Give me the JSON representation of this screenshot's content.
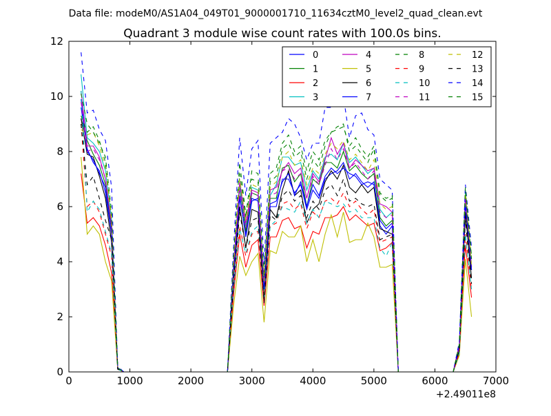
{
  "suptitle": "Data file: modeM0/AS1A04_049T01_9000001710_11634cztM0_level2_quad_clean.evt",
  "chart_data": {
    "type": "line",
    "title": "Quadrant 3 module wise count rates with 100.0s bins.",
    "xlabel": "",
    "ylabel": "",
    "x_offset_label": "+2.49011e8",
    "xlim": [
      0,
      7000
    ],
    "ylim": [
      0,
      12
    ],
    "xticks": [
      0,
      1000,
      2000,
      3000,
      4000,
      5000,
      6000,
      7000
    ],
    "xtick_labels": [
      "0",
      "1000",
      "2000",
      "3000",
      "4000",
      "5000",
      "6000",
      "7000"
    ],
    "yticks": [
      0,
      2,
      4,
      6,
      8,
      10,
      12
    ],
    "ytick_labels": [
      "0",
      "2",
      "4",
      "6",
      "8",
      "10",
      "12"
    ],
    "legend_location": "top-right",
    "legend_columns": 4,
    "x": [
      200,
      300,
      400,
      500,
      600,
      700,
      800,
      900,
      1000,
      1100,
      1200,
      1300,
      1400,
      1500,
      1600,
      1700,
      1800,
      1900,
      2000,
      2100,
      2200,
      2300,
      2400,
      2500,
      2600,
      2700,
      2800,
      2900,
      3000,
      3100,
      3200,
      3300,
      3400,
      3500,
      3600,
      3700,
      3800,
      3900,
      4000,
      4100,
      4200,
      4300,
      4400,
      4500,
      4600,
      4700,
      4800,
      4900,
      5000,
      5100,
      5200,
      5300,
      5400,
      5500,
      5600,
      5700,
      5800,
      5900,
      6000,
      6100,
      6200,
      6300,
      6400,
      6500,
      6600
    ],
    "series": [
      {
        "name": "0",
        "color": "#0000ff",
        "dash": "solid",
        "values": [
          9.6,
          8.1,
          7.6,
          7.3,
          6.5,
          5.0,
          0.15,
          0,
          0,
          0,
          0,
          0,
          0,
          0,
          0,
          0,
          0,
          0,
          0,
          0,
          0,
          0,
          0,
          0,
          0,
          3.6,
          6.3,
          5.0,
          6.3,
          6.2,
          3.1,
          6.0,
          6.0,
          7.0,
          7.0,
          6.5,
          6.8,
          5.9,
          6.6,
          6.3,
          7.0,
          7.2,
          7.3,
          7.6,
          7.0,
          7.2,
          6.9,
          6.7,
          6.9,
          5.3,
          5.0,
          5.3,
          0,
          0,
          0,
          0,
          0,
          0,
          0,
          0,
          0,
          0,
          0.9,
          6.1,
          3.7
        ]
      },
      {
        "name": "1",
        "color": "#008000",
        "dash": "solid",
        "values": [
          9.2,
          8.4,
          7.9,
          7.5,
          6.8,
          5.2,
          0.15,
          0,
          0,
          0,
          0,
          0,
          0,
          0,
          0,
          0,
          0,
          0,
          0,
          0,
          0,
          0,
          0,
          0,
          0,
          3.7,
          6.7,
          5.1,
          6.5,
          6.4,
          3.2,
          6.3,
          6.3,
          7.4,
          7.5,
          6.9,
          7.2,
          6.0,
          7.0,
          6.8,
          7.6,
          7.6,
          7.4,
          8.0,
          7.3,
          7.5,
          7.2,
          7.0,
          7.2,
          5.6,
          5.3,
          5.5,
          0,
          0,
          0,
          0,
          0,
          0,
          0,
          0,
          0,
          0,
          0.9,
          6.3,
          3.8
        ]
      },
      {
        "name": "2",
        "color": "#ff0000",
        "dash": "solid",
        "values": [
          7.2,
          5.4,
          5.6,
          5.3,
          4.6,
          3.6,
          0.1,
          0,
          0,
          0,
          0,
          0,
          0,
          0,
          0,
          0,
          0,
          0,
          0,
          0,
          0,
          0,
          0,
          0,
          0,
          2.8,
          5.0,
          3.8,
          4.6,
          4.8,
          2.4,
          4.9,
          4.9,
          5.5,
          5.6,
          5.2,
          5.3,
          4.5,
          5.1,
          5.0,
          5.6,
          5.6,
          5.7,
          6.0,
          5.5,
          5.7,
          5.5,
          5.3,
          5.4,
          4.4,
          4.5,
          4.7,
          0,
          0,
          0,
          0,
          0,
          0,
          0,
          0,
          0,
          0,
          0.7,
          4.6,
          2.7
        ]
      },
      {
        "name": "3",
        "color": "#00bfbf",
        "dash": "solid",
        "values": [
          10.8,
          8.5,
          8.3,
          8.0,
          7.3,
          5.5,
          0.15,
          0,
          0,
          0,
          0,
          0,
          0,
          0,
          0,
          0,
          0,
          0,
          0,
          0,
          0,
          0,
          0,
          0,
          0,
          3.9,
          6.8,
          5.3,
          6.7,
          6.6,
          3.3,
          6.4,
          6.8,
          7.8,
          7.8,
          7.5,
          7.6,
          6.6,
          7.3,
          7.0,
          7.8,
          7.9,
          7.7,
          8.3,
          7.6,
          7.8,
          7.5,
          7.2,
          7.4,
          5.9,
          5.6,
          5.8,
          0,
          0,
          0,
          0,
          0,
          0,
          0,
          0,
          0,
          0,
          1.0,
          6.5,
          3.9
        ]
      },
      {
        "name": "4",
        "color": "#bf00bf",
        "dash": "solid",
        "values": [
          10.2,
          8.2,
          8.2,
          7.8,
          7.0,
          5.3,
          0.15,
          0,
          0,
          0,
          0,
          0,
          0,
          0,
          0,
          0,
          0,
          0,
          0,
          0,
          0,
          0,
          0,
          0,
          0,
          3.8,
          6.9,
          5.4,
          6.6,
          6.5,
          3.3,
          6.6,
          6.7,
          7.3,
          7.6,
          7.2,
          7.4,
          6.3,
          7.2,
          6.9,
          7.7,
          8.5,
          7.9,
          8.3,
          7.4,
          7.7,
          7.5,
          7.3,
          7.4,
          6.1,
          6.0,
          5.8,
          0,
          0,
          0,
          0,
          0,
          0,
          0,
          0,
          0,
          0,
          1.0,
          6.4,
          3.8
        ]
      },
      {
        "name": "5",
        "color": "#bfbf00",
        "dash": "solid",
        "values": [
          7.8,
          5.0,
          5.3,
          5.0,
          4.0,
          3.3,
          0.1,
          0,
          0,
          0,
          0,
          0,
          0,
          0,
          0,
          0,
          0,
          0,
          0,
          0,
          0,
          0,
          0,
          0,
          0,
          2.4,
          4.2,
          3.5,
          4.0,
          4.3,
          1.8,
          4.4,
          4.3,
          5.1,
          4.9,
          4.9,
          5.3,
          4.0,
          4.8,
          4.0,
          5.0,
          5.7,
          4.9,
          5.8,
          4.7,
          4.8,
          4.8,
          5.4,
          4.9,
          3.8,
          3.8,
          3.9,
          0,
          0,
          0,
          0,
          0,
          0,
          0,
          0,
          0,
          0,
          0.6,
          4.1,
          2.0
        ]
      },
      {
        "name": "6",
        "color": "#000000",
        "dash": "solid",
        "values": [
          9.2,
          7.9,
          7.8,
          7.1,
          6.3,
          4.7,
          0.1,
          0,
          0,
          0,
          0,
          0,
          0,
          0,
          0,
          0,
          0,
          0,
          0,
          0,
          0,
          0,
          0,
          0,
          0,
          3.4,
          6.0,
          4.5,
          5.9,
          5.8,
          2.6,
          5.9,
          5.6,
          6.6,
          7.3,
          6.4,
          6.6,
          5.4,
          5.9,
          6.1,
          6.9,
          7.3,
          7.0,
          7.5,
          6.7,
          6.5,
          6.8,
          6.5,
          6.7,
          5.2,
          5.1,
          5.0,
          0,
          0,
          0,
          0,
          0,
          0,
          0,
          0,
          0,
          0,
          0.8,
          5.8,
          3.4
        ]
      },
      {
        "name": "7",
        "color": "#0000ff",
        "dash": "solid",
        "values": [
          9.9,
          8.0,
          7.7,
          7.2,
          6.7,
          5.0,
          0.15,
          0,
          0,
          0,
          0,
          0,
          0,
          0,
          0,
          0,
          0,
          0,
          0,
          0,
          0,
          0,
          0,
          0,
          0,
          3.6,
          6.4,
          4.9,
          6.2,
          6.3,
          3.0,
          6.1,
          6.2,
          6.9,
          7.2,
          6.4,
          6.9,
          6.0,
          6.8,
          6.4,
          7.1,
          7.4,
          7.2,
          7.4,
          7.2,
          7.1,
          6.8,
          6.9,
          6.8,
          5.5,
          5.2,
          5.4,
          0,
          0,
          0,
          0,
          0,
          0,
          0,
          0,
          0,
          0,
          0.9,
          6.2,
          3.7
        ]
      },
      {
        "name": "8",
        "color": "#008000",
        "dash": "dashed",
        "values": [
          9.3,
          8.7,
          8.9,
          8.4,
          7.6,
          5.6,
          0.15,
          0,
          0,
          0,
          0,
          0,
          0,
          0,
          0,
          0,
          0,
          0,
          0,
          0,
          0,
          0,
          0,
          0,
          0,
          4.0,
          7.2,
          5.6,
          7.0,
          6.9,
          3.4,
          6.9,
          7.1,
          8.1,
          8.3,
          7.8,
          8.0,
          7.0,
          7.7,
          7.4,
          8.2,
          8.7,
          8.9,
          9.0,
          8.0,
          8.2,
          7.9,
          7.6,
          8.1,
          6.4,
          6.2,
          6.3,
          0,
          0,
          0,
          0,
          0,
          0,
          0,
          0,
          0,
          0,
          1.0,
          6.6,
          4.1
        ]
      },
      {
        "name": "9",
        "color": "#ff0000",
        "dash": "dashed",
        "values": [
          9.0,
          6.0,
          6.2,
          5.8,
          5.0,
          4.2,
          0.1,
          0,
          0,
          0,
          0,
          0,
          0,
          0,
          0,
          0,
          0,
          0,
          0,
          0,
          0,
          0,
          0,
          0,
          0,
          3.0,
          5.3,
          4.2,
          5.0,
          5.1,
          2.6,
          5.3,
          5.4,
          6.1,
          6.2,
          5.9,
          6.1,
          5.2,
          5.8,
          5.6,
          6.2,
          6.3,
          6.1,
          6.5,
          6.0,
          6.2,
          5.9,
          5.7,
          5.9,
          4.7,
          4.8,
          4.9,
          0,
          0,
          0,
          0,
          0,
          0,
          0,
          0,
          0,
          0,
          0.7,
          5.0,
          3.0
        ]
      },
      {
        "name": "10",
        "color": "#00bfbf",
        "dash": "dashed",
        "values": [
          10.2,
          5.8,
          6.2,
          5.9,
          5.1,
          4.3,
          0.1,
          0,
          0,
          0,
          0,
          0,
          0,
          0,
          0,
          0,
          0,
          0,
          0,
          0,
          0,
          0,
          0,
          0,
          0,
          3.0,
          5.2,
          4.3,
          5.1,
          5.3,
          2.6,
          5.3,
          5.5,
          6.0,
          5.9,
          5.8,
          6.2,
          5.4,
          5.9,
          5.6,
          6.2,
          6.1,
          6.0,
          6.1,
          5.8,
          5.9,
          5.6,
          5.6,
          5.6,
          4.5,
          4.2,
          4.7,
          0,
          0,
          0,
          0,
          0,
          0,
          0,
          0,
          0,
          0,
          0.7,
          5.0,
          3.0
        ]
      },
      {
        "name": "11",
        "color": "#bf00bf",
        "dash": "dashed",
        "values": [
          9.8,
          8.0,
          8.1,
          7.7,
          7.0,
          5.3,
          0.15,
          0,
          0,
          0,
          0,
          0,
          0,
          0,
          0,
          0,
          0,
          0,
          0,
          0,
          0,
          0,
          0,
          0,
          0,
          3.8,
          6.6,
          5.2,
          6.5,
          6.4,
          3.2,
          6.4,
          6.5,
          7.3,
          7.4,
          7.0,
          7.2,
          6.3,
          7.1,
          6.8,
          7.5,
          8.1,
          7.7,
          8.1,
          7.4,
          7.6,
          7.3,
          7.0,
          7.3,
          5.8,
          5.6,
          5.7,
          0,
          0,
          0,
          0,
          0,
          0,
          0,
          0,
          0,
          0,
          0.9,
          6.4,
          3.8
        ]
      },
      {
        "name": "12",
        "color": "#bfbf00",
        "dash": "dashed",
        "values": [
          8.8,
          8.6,
          8.7,
          8.2,
          7.4,
          5.5,
          0.15,
          0,
          0,
          0,
          0,
          0,
          0,
          0,
          0,
          0,
          0,
          0,
          0,
          0,
          0,
          0,
          0,
          0,
          0,
          3.9,
          7.0,
          5.5,
          6.8,
          6.7,
          3.3,
          6.7,
          6.9,
          7.8,
          8.0,
          7.5,
          7.7,
          6.8,
          7.4,
          7.2,
          7.9,
          8.3,
          8.1,
          8.4,
          7.7,
          7.9,
          7.6,
          7.3,
          7.7,
          6.1,
          5.9,
          6.0,
          0,
          0,
          0,
          0,
          0,
          0,
          0,
          0,
          0,
          0,
          1.0,
          6.5,
          3.9
        ]
      },
      {
        "name": "13",
        "color": "#000000",
        "dash": "dashed",
        "values": [
          9.0,
          6.8,
          7.1,
          6.3,
          5.5,
          4.8,
          0.1,
          0,
          0,
          0,
          0,
          0,
          0,
          0,
          0,
          0,
          0,
          0,
          0,
          0,
          0,
          0,
          0,
          0,
          0,
          3.2,
          5.8,
          4.5,
          5.5,
          5.6,
          2.5,
          5.7,
          5.5,
          6.4,
          6.6,
          6.2,
          6.4,
          5.6,
          6.2,
          5.9,
          6.6,
          6.8,
          6.4,
          7.0,
          6.2,
          6.3,
          6.1,
          6.0,
          6.1,
          4.8,
          4.9,
          5.0,
          0,
          0,
          0,
          0,
          0,
          0,
          0,
          0,
          0,
          0,
          0.8,
          5.5,
          3.2
        ]
      },
      {
        "name": "14",
        "color": "#0000ff",
        "dash": "dashed",
        "values": [
          11.6,
          9.4,
          9.5,
          8.8,
          8.4,
          6.7,
          0.2,
          0,
          0,
          0,
          0,
          0,
          0,
          0,
          0,
          0,
          0,
          0,
          0,
          0,
          0,
          0,
          0,
          0,
          0,
          4.5,
          8.5,
          6.4,
          8.1,
          8.4,
          3.9,
          8.3,
          8.5,
          8.7,
          9.2,
          9.0,
          8.5,
          7.7,
          8.3,
          8.3,
          9.6,
          9.6,
          9.8,
          10.0,
          8.5,
          9.3,
          9.4,
          8.8,
          8.6,
          7.0,
          6.8,
          6.6,
          0,
          0,
          0,
          0,
          0,
          0,
          0,
          0,
          0,
          0,
          1.1,
          6.8,
          4.5
        ]
      },
      {
        "name": "15",
        "color": "#008000",
        "dash": "dashed",
        "values": [
          10.1,
          9.0,
          8.7,
          8.3,
          7.8,
          5.8,
          0.15,
          0,
          0,
          0,
          0,
          0,
          0,
          0,
          0,
          0,
          0,
          0,
          0,
          0,
          0,
          0,
          0,
          0,
          0,
          4.2,
          7.6,
          5.7,
          7.3,
          7.2,
          3.5,
          7.2,
          7.4,
          8.3,
          8.6,
          8.0,
          8.2,
          7.3,
          8.0,
          7.7,
          8.4,
          8.7,
          8.8,
          8.9,
          8.2,
          8.5,
          8.1,
          7.8,
          8.2,
          6.5,
          6.3,
          6.4,
          0,
          0,
          0,
          0,
          0,
          0,
          0,
          0,
          0,
          0,
          1.0,
          6.7,
          4.2
        ]
      }
    ]
  }
}
